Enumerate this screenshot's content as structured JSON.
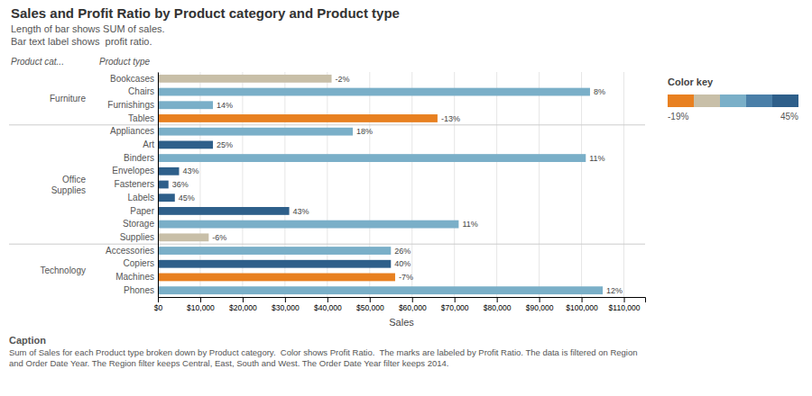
{
  "chart_data": {
    "type": "bar",
    "orientation": "horizontal",
    "title": "Sales and Profit Ratio by Product category and Product type",
    "subtitle": [
      "Length of bar shows SUM of sales.",
      "Bar text label shows  profit ratio."
    ],
    "xlabel": "Sales",
    "column_headers": [
      "Product cat...",
      "Product type"
    ],
    "categories": [
      "Bookcases",
      "Chairs",
      "Furnishings",
      "Tables",
      "Appliances",
      "Art",
      "Binders",
      "Envelopes",
      "Fasteners",
      "Labels",
      "Paper",
      "Storage",
      "Supplies",
      "Accessories",
      "Copiers",
      "Machines",
      "Phones"
    ],
    "category_groups": [
      "Furniture",
      "Furniture",
      "Furniture",
      "Furniture",
      "Office\nSupplies",
      "Office\nSupplies",
      "Office\nSupplies",
      "Office\nSupplies",
      "Office\nSupplies",
      "Office\nSupplies",
      "Office\nSupplies",
      "Office\nSupplies",
      "Office\nSupplies",
      "Technology",
      "Technology",
      "Technology",
      "Technology"
    ],
    "values": [
      41000,
      102000,
      13000,
      66000,
      46000,
      13000,
      101000,
      5000,
      2500,
      4000,
      31000,
      71000,
      12000,
      55000,
      55000,
      56000,
      105000
    ],
    "colors": [
      "#c8bfa8",
      "#7aafc8",
      "#7aafc8",
      "#e88020",
      "#7aafc8",
      "#2e5f8a",
      "#7aafc8",
      "#2e5f8a",
      "#2e5f8a",
      "#2e5f8a",
      "#2e5f8a",
      "#7aafc8",
      "#c8bfa8",
      "#7aafc8",
      "#2e5f8a",
      "#e88020",
      "#7aafc8"
    ],
    "profit_ratio_labels": [
      "-2%",
      "8%",
      "14%",
      "-13%",
      "18%",
      "25%",
      "11%",
      "43%",
      "36%",
      "45%",
      "43%",
      "11%",
      "-6%",
      "26%",
      "40%",
      "-7%",
      "12%"
    ],
    "xlim": [
      0,
      115000
    ],
    "xticks": [
      {
        "value": 0,
        "label": "$0"
      },
      {
        "value": 10000,
        "label": "$10,000"
      },
      {
        "value": 20000,
        "label": "$20,000"
      },
      {
        "value": 30000,
        "label": "$30,000"
      },
      {
        "value": 40000,
        "label": "$40,000"
      },
      {
        "value": 50000,
        "label": "$50,000"
      },
      {
        "value": 60000,
        "label": "$60,000"
      },
      {
        "value": 70000,
        "label": "$70,000"
      },
      {
        "value": 80000,
        "label": "$80,000"
      },
      {
        "value": 90000,
        "label": "$90,000"
      },
      {
        "value": 100000,
        "label": "$100,000"
      },
      {
        "value": 110000,
        "label": "$110,000"
      }
    ],
    "grid": true,
    "colorbar": {
      "title": "Color key",
      "range": [
        -19,
        45
      ],
      "labels": [
        "-19%",
        "45%"
      ],
      "colors": [
        "#e88020",
        "#c8bfa8",
        "#7aafc8",
        "#4a7fa8",
        "#2e5f8a"
      ]
    },
    "caption_title": "Caption",
    "caption": "Sum of Sales for each Product type broken down by Product category.  Color shows Profit Ratio.  The marks are labeled by Profit Ratio. The data is filtered on Region and Order Date Year. The Region filter keeps Central, East, South and West. The Order Date Year filter keeps 2014."
  }
}
